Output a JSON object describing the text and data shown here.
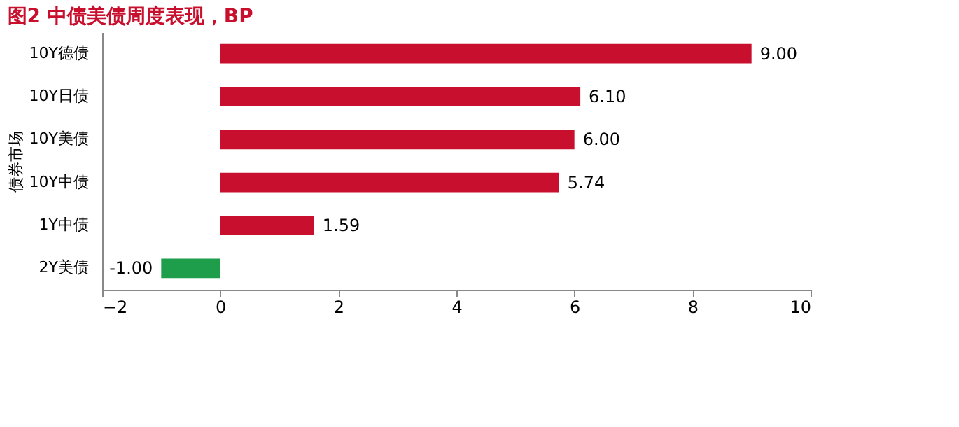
{
  "chart_data": {
    "type": "bar",
    "orientation": "horizontal",
    "title": "图2  中债美债周度表现，BP",
    "ylabel": "债券市场",
    "categories": [
      "10Y德债",
      "10Y日债",
      "10Y美债",
      "10Y中债",
      "1Y中债",
      "2Y美债"
    ],
    "values": [
      9.0,
      6.1,
      6.0,
      5.74,
      1.59,
      -1.0
    ],
    "value_labels": [
      "9.00",
      "6.10",
      "6.00",
      "5.74",
      "1.59",
      "-1.00"
    ],
    "colors": [
      "#c8102e",
      "#c8102e",
      "#c8102e",
      "#c8102e",
      "#c8102e",
      "#1e9e4a"
    ],
    "xlim": [
      -2,
      10
    ],
    "xticks": [
      -2,
      0,
      2,
      4,
      6,
      8,
      10
    ],
    "grid": false
  }
}
